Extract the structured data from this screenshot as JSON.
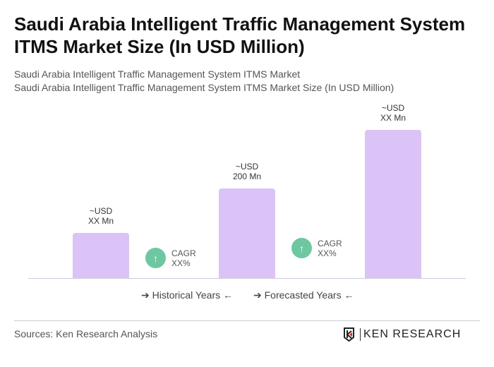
{
  "header": {
    "title": "Saudi Arabia Intelligent Traffic Management System ITMS Market Size (In USD Million)",
    "subtitle1": "Saudi Arabia Intelligent Traffic Management System ITMS Market",
    "subtitle2": "Saudi Arabia Intelligent Traffic Management System ITMS Market Size (In USD Million)"
  },
  "chart_data": {
    "type": "bar",
    "values": [
      100,
      200,
      330
    ],
    "data_labels": [
      [
        "~USD",
        "XX Mn"
      ],
      [
        "~USD",
        "200 Mn"
      ],
      [
        "~USD",
        "XX Mn"
      ]
    ],
    "annotations": [
      [
        "CAGR",
        "XX%"
      ],
      [
        "CAGR",
        "XX%"
      ]
    ],
    "legend": [
      "Historical Years",
      "Forecasted Years"
    ],
    "bar_color": "#dcc3f7",
    "cagr_color": "#6fc7a2",
    "ylim": [
      0,
      330
    ]
  },
  "footer": {
    "sources": "Sources: Ken Research Analysis",
    "logo": "KEN RESEARCH"
  }
}
